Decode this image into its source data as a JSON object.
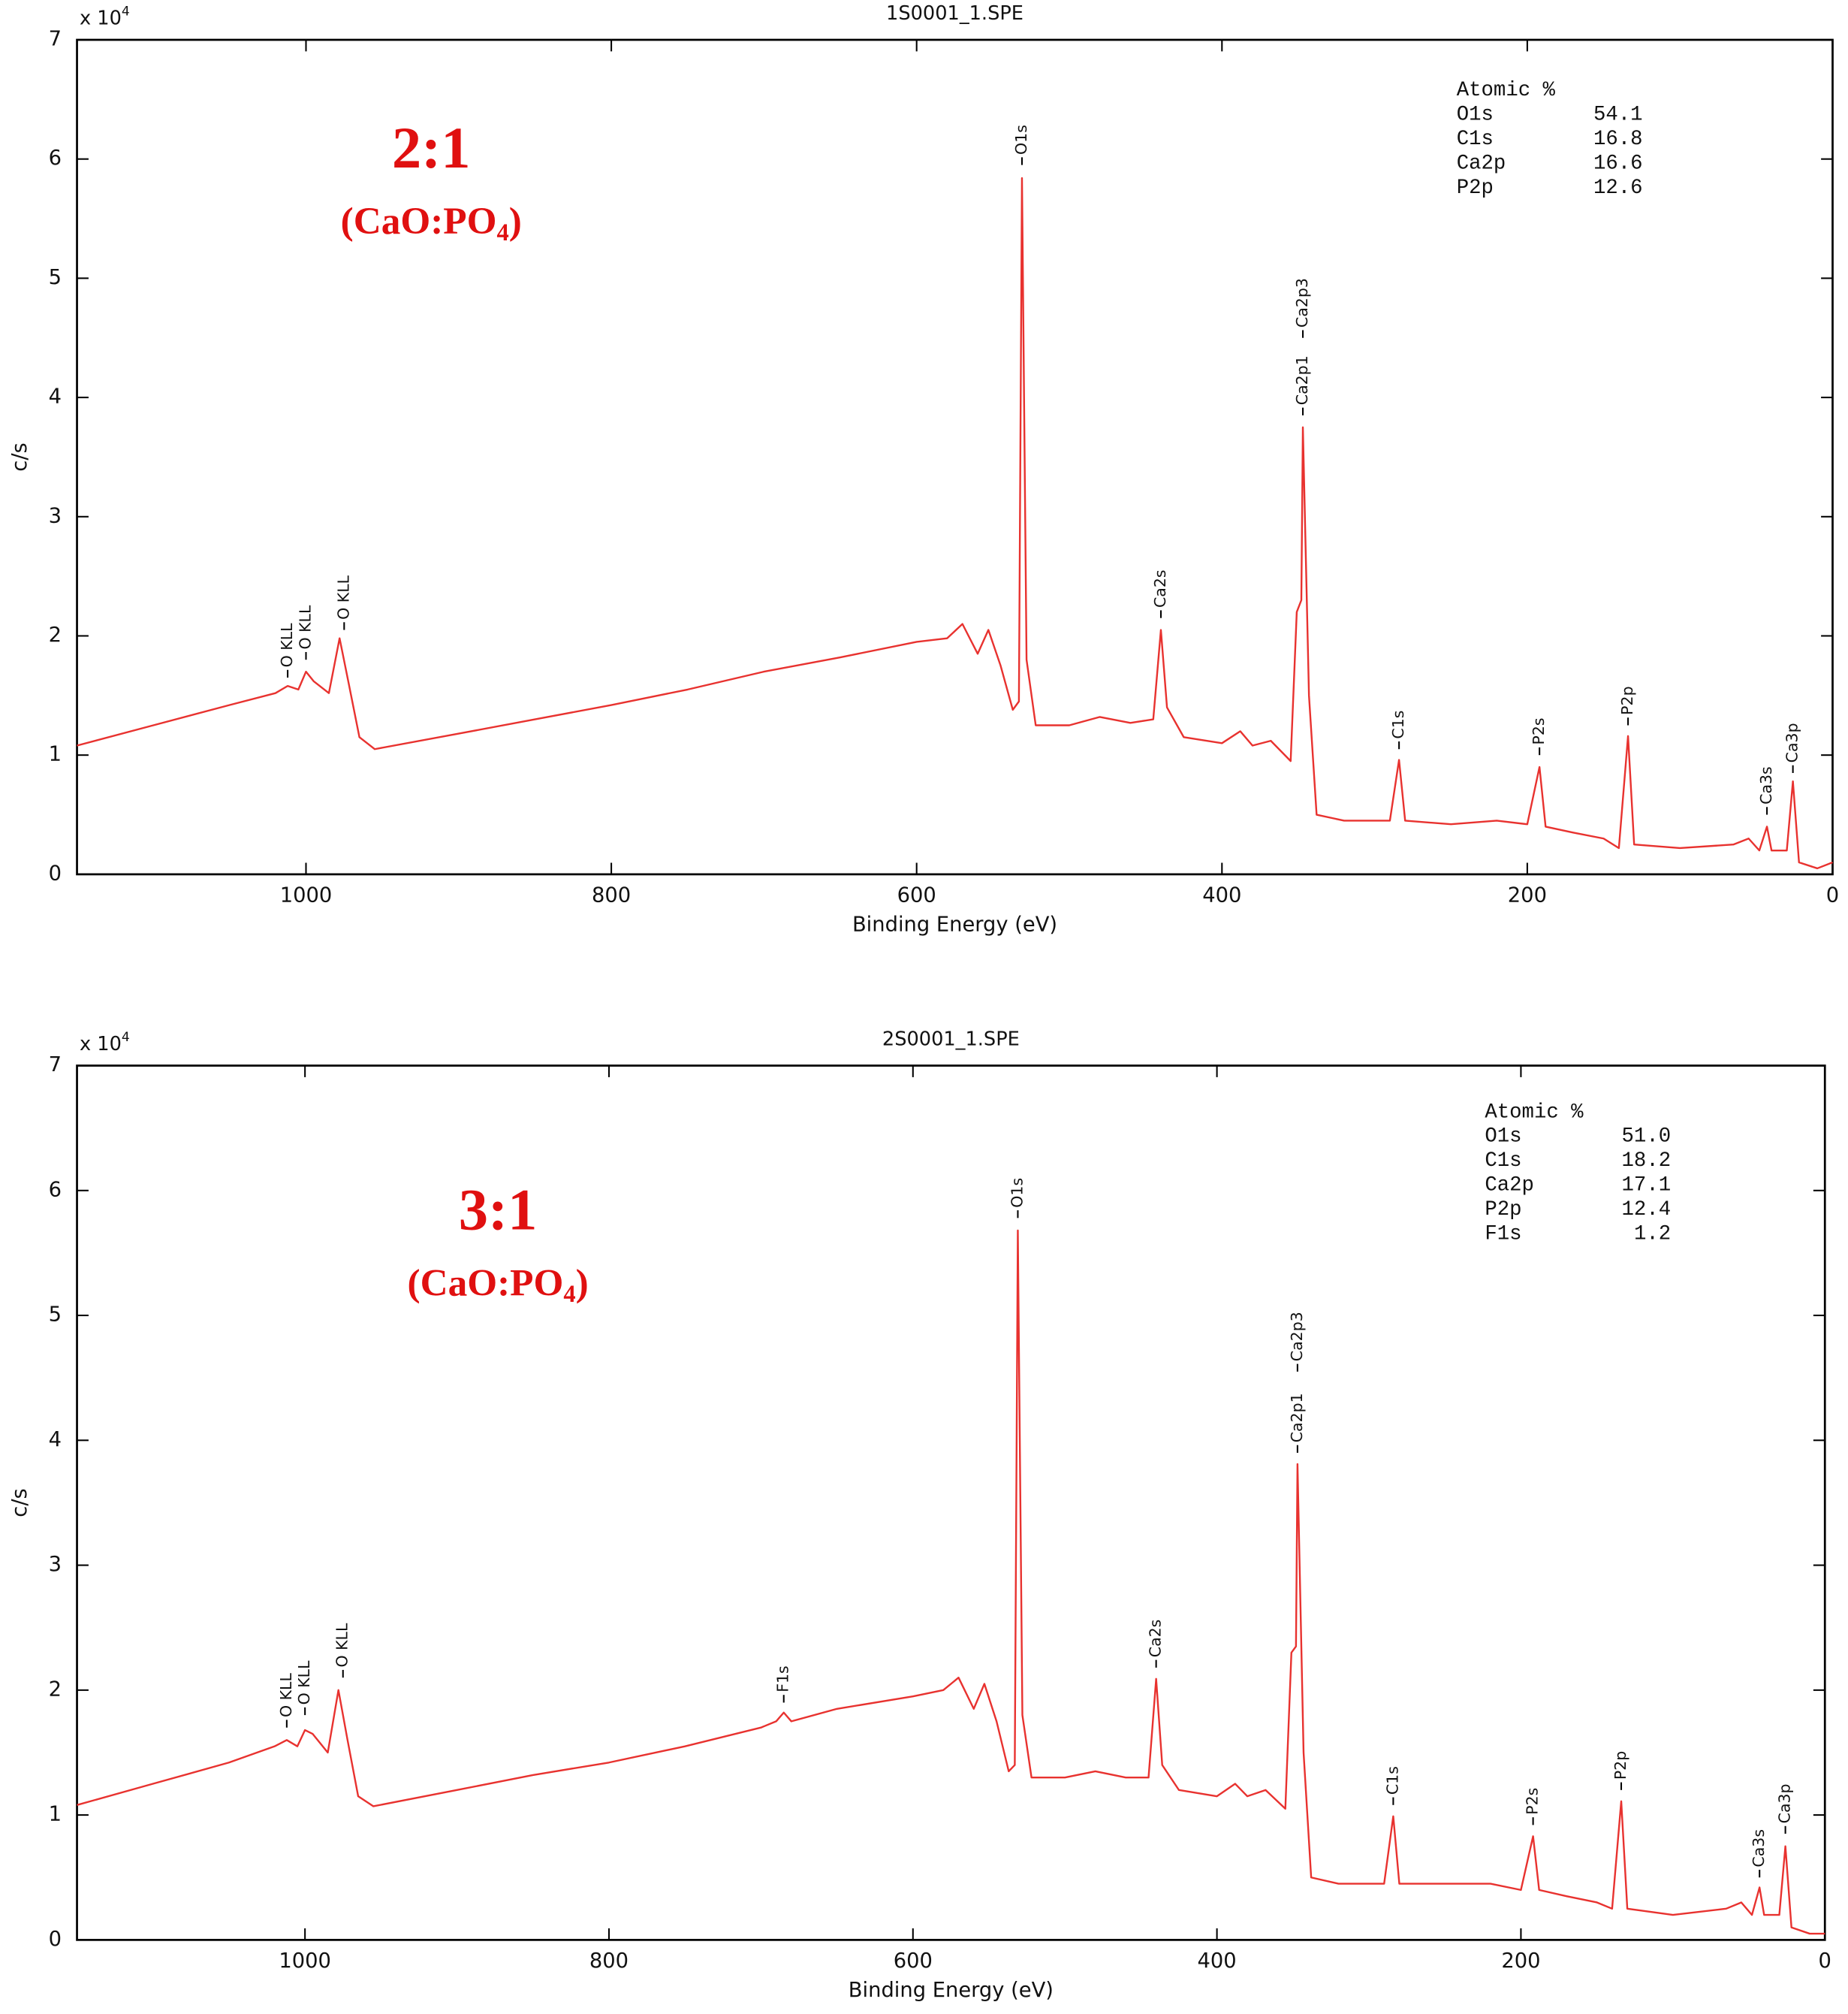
{
  "chart_data": [
    {
      "type": "line",
      "title": "1S0001_1.SPE",
      "xlabel": "Binding Energy (eV)",
      "ylabel": "c/s",
      "y_multiplier": [
        "x 10",
        "4"
      ],
      "sample_label": "2:1",
      "sample_formula": [
        "(CaO:PO",
        "4",
        ")"
      ],
      "atomic_percent": {
        "title": "Atomic %",
        "rows": [
          [
            "O1s",
            "54.1"
          ],
          [
            "C1s",
            "16.8"
          ],
          [
            "Ca2p",
            "16.6"
          ],
          [
            "P2p",
            "12.6"
          ]
        ]
      },
      "color": "#e8322f",
      "xlim": [
        1150,
        0
      ],
      "xticks": [
        1000,
        800,
        600,
        400,
        200,
        0
      ],
      "ylim": [
        0,
        7
      ],
      "yticks": [
        0,
        1,
        2,
        3,
        4,
        5,
        6,
        7
      ],
      "x": [
        1150,
        1100,
        1050,
        1020,
        1012,
        1005,
        1000,
        995,
        985,
        978,
        972,
        965,
        955,
        900,
        850,
        800,
        750,
        700,
        650,
        600,
        580,
        570,
        560,
        553,
        545,
        537,
        533,
        531,
        528,
        522,
        500,
        480,
        460,
        445,
        440,
        436,
        425,
        400,
        388,
        380,
        368,
        355,
        351,
        348,
        347,
        343,
        338,
        320,
        290,
        284,
        280,
        250,
        220,
        200,
        192,
        188,
        170,
        150,
        140,
        134,
        130,
        100,
        65,
        55,
        48,
        43,
        40,
        30,
        26,
        22,
        10,
        0
      ],
      "values": [
        1.08,
        1.25,
        1.42,
        1.52,
        1.58,
        1.55,
        1.7,
        1.62,
        1.52,
        1.98,
        1.6,
        1.15,
        1.05,
        1.18,
        1.3,
        1.42,
        1.55,
        1.7,
        1.82,
        1.95,
        1.98,
        2.1,
        1.85,
        2.05,
        1.75,
        1.38,
        1.45,
        5.84,
        1.8,
        1.25,
        1.25,
        1.32,
        1.27,
        1.3,
        2.05,
        1.4,
        1.15,
        1.1,
        1.2,
        1.08,
        1.12,
        0.95,
        2.2,
        2.3,
        3.75,
        1.5,
        0.5,
        0.45,
        0.45,
        0.96,
        0.45,
        0.42,
        0.45,
        0.42,
        0.9,
        0.4,
        0.35,
        0.3,
        0.22,
        1.16,
        0.25,
        0.22,
        0.25,
        0.3,
        0.2,
        0.4,
        0.2,
        0.2,
        0.78,
        0.1,
        0.05,
        0.1
      ],
      "peak_labels": [
        {
          "text": "O KLL",
          "x": 1012,
          "y": 1.65
        },
        {
          "text": "O KLL",
          "x": 1000,
          "y": 1.8
        },
        {
          "text": "O KLL",
          "x": 975,
          "y": 2.05
        },
        {
          "text": "O1s",
          "x": 531,
          "y": 5.95
        },
        {
          "text": "Ca2s",
          "x": 440,
          "y": 2.15
        },
        {
          "text": "Ca2p1",
          "x": 347,
          "y": 3.85
        },
        {
          "text": "Ca2p3",
          "x": 347,
          "y": 4.5
        },
        {
          "text": "C1s",
          "x": 284,
          "y": 1.05
        },
        {
          "text": "P2s",
          "x": 192,
          "y": 1.0
        },
        {
          "text": "P2p",
          "x": 134,
          "y": 1.25
        },
        {
          "text": "Ca3s",
          "x": 43,
          "y": 0.5
        },
        {
          "text": "Ca3p",
          "x": 26,
          "y": 0.85
        }
      ]
    },
    {
      "type": "line",
      "title": "2S0001_1.SPE",
      "xlabel": "Binding Energy (eV)",
      "ylabel": "c/s",
      "y_multiplier": [
        "x 10",
        "4"
      ],
      "sample_label": "3:1",
      "sample_formula": [
        "(CaO:PO",
        "4",
        ")"
      ],
      "atomic_percent": {
        "title": "Atomic %",
        "rows": [
          [
            "O1s",
            "51.0"
          ],
          [
            "C1s",
            "18.2"
          ],
          [
            "Ca2p",
            "17.1"
          ],
          [
            "P2p",
            "12.4"
          ],
          [
            "F1s",
            "1.2"
          ]
        ]
      },
      "color": "#e8322f",
      "xlim": [
        1150,
        0
      ],
      "xticks": [
        1000,
        800,
        600,
        400,
        200,
        0
      ],
      "ylim": [
        0,
        7
      ],
      "yticks": [
        0,
        1,
        2,
        3,
        4,
        5,
        6,
        7
      ],
      "x": [
        1150,
        1100,
        1050,
        1020,
        1012,
        1005,
        1000,
        995,
        985,
        978,
        972,
        965,
        955,
        900,
        850,
        800,
        750,
        700,
        690,
        685,
        680,
        650,
        600,
        580,
        570,
        560,
        553,
        545,
        537,
        533,
        531,
        528,
        522,
        500,
        480,
        460,
        445,
        440,
        436,
        425,
        400,
        388,
        380,
        368,
        355,
        351,
        348,
        347,
        343,
        338,
        320,
        290,
        284,
        280,
        250,
        220,
        200,
        192,
        188,
        170,
        150,
        140,
        134,
        130,
        100,
        65,
        55,
        48,
        43,
        40,
        30,
        26,
        22,
        10,
        0
      ],
      "values": [
        1.08,
        1.25,
        1.42,
        1.55,
        1.6,
        1.55,
        1.68,
        1.65,
        1.5,
        2.0,
        1.6,
        1.15,
        1.07,
        1.2,
        1.32,
        1.42,
        1.55,
        1.7,
        1.75,
        1.82,
        1.75,
        1.85,
        1.95,
        2.0,
        2.1,
        1.85,
        2.05,
        1.75,
        1.35,
        1.4,
        5.68,
        1.8,
        1.3,
        1.3,
        1.35,
        1.3,
        1.3,
        2.09,
        1.4,
        1.2,
        1.15,
        1.25,
        1.15,
        1.2,
        1.05,
        2.3,
        2.35,
        3.81,
        1.5,
        0.5,
        0.45,
        0.45,
        0.99,
        0.45,
        0.45,
        0.45,
        0.4,
        0.83,
        0.4,
        0.35,
        0.3,
        0.25,
        1.11,
        0.25,
        0.2,
        0.25,
        0.3,
        0.2,
        0.42,
        0.2,
        0.2,
        0.75,
        0.1,
        0.05,
        0.05
      ],
      "peak_labels": [
        {
          "text": "O KLL",
          "x": 1012,
          "y": 1.7
        },
        {
          "text": "O KLL",
          "x": 1000,
          "y": 1.8
        },
        {
          "text": "O KLL",
          "x": 975,
          "y": 2.1
        },
        {
          "text": "F1s",
          "x": 685,
          "y": 1.9
        },
        {
          "text": "O1s",
          "x": 531,
          "y": 5.78
        },
        {
          "text": "Ca2s",
          "x": 440,
          "y": 2.18
        },
        {
          "text": "Ca2p1",
          "x": 347,
          "y": 3.9
        },
        {
          "text": "Ca2p3",
          "x": 347,
          "y": 4.55
        },
        {
          "text": "C1s",
          "x": 284,
          "y": 1.08
        },
        {
          "text": "P2s",
          "x": 192,
          "y": 0.92
        },
        {
          "text": "P2p",
          "x": 134,
          "y": 1.2
        },
        {
          "text": "Ca3s",
          "x": 43,
          "y": 0.5
        },
        {
          "text": "Ca3p",
          "x": 26,
          "y": 0.85
        }
      ]
    }
  ]
}
